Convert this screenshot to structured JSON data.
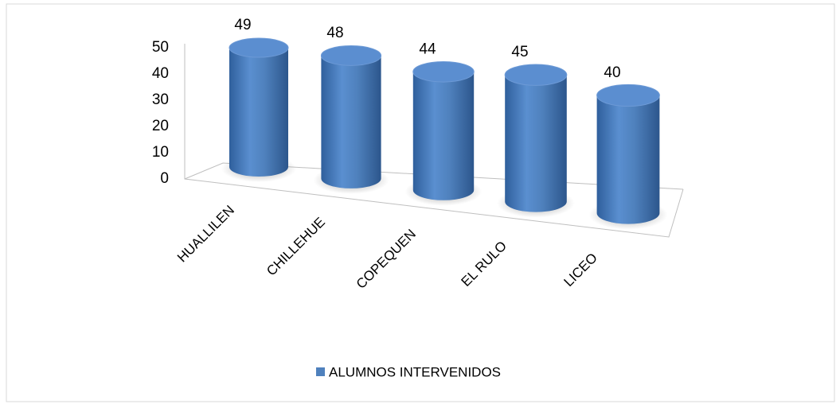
{
  "chart_data": {
    "type": "bar3d",
    "categories": [
      "HUALLILEN",
      "CHILLEHUE",
      "COPEQUEN",
      "EL RULO",
      "LICEO"
    ],
    "series": [
      {
        "name": "ALUMNOS INTERVENIDOS",
        "color": "#4f81bd",
        "values": [
          49,
          48,
          44,
          45,
          40
        ]
      }
    ],
    "ylim": [
      0,
      50
    ],
    "yticks": [
      0,
      10,
      20,
      30,
      40,
      50
    ],
    "grid": false,
    "legend": "bottom"
  }
}
